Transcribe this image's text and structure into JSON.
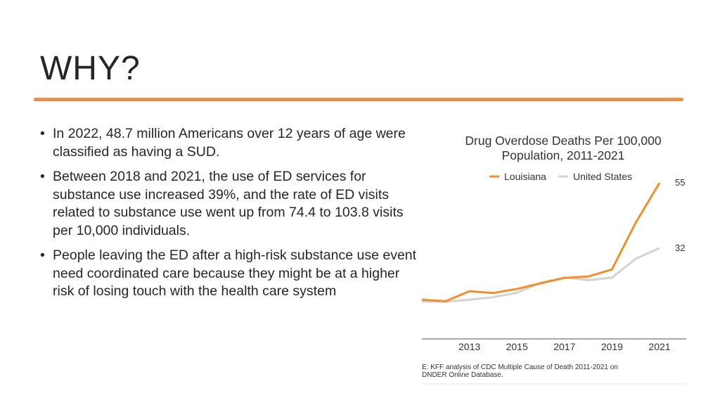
{
  "slide": {
    "title": "WHY?",
    "bullets": [
      "In 2022, 48.7 million Americans over 12 years of age were classified as having a SUD.",
      "Between 2018 and 2021, the use of ED services for substance use increased 39%, and the rate of ED visits related to substance use went up from 74.4 to 103.8 visits per 10,000 individuals.",
      "People leaving the ED after a high-risk substance use event need coordinated care because they might be at a higher risk of losing touch with the health care system"
    ],
    "bullet_glyph": "•",
    "accent_color": "#ef8d4f"
  },
  "chart_data": {
    "type": "line",
    "title_lines": [
      "Drug Overdose Deaths Per 100,000",
      "Population, 2011-2021"
    ],
    "x": [
      2011,
      2012,
      2013,
      2014,
      2015,
      2016,
      2017,
      2018,
      2019,
      2020,
      2021
    ],
    "tick_labels": [
      "2013",
      "2015",
      "2017",
      "2019",
      "2021"
    ],
    "series": [
      {
        "name": "Louisiana",
        "color": "#f28e2b",
        "values": [
          13.8,
          13.3,
          16.8,
          16.2,
          17.6,
          19.6,
          21.5,
          22.0,
          24.5,
          41.0,
          55.0
        ]
      },
      {
        "name": "United States",
        "color": "#d3d3d3",
        "values": [
          13.2,
          13.1,
          13.8,
          14.7,
          16.3,
          19.8,
          21.7,
          20.7,
          21.6,
          28.3,
          32.0
        ]
      }
    ],
    "end_labels": [
      "55",
      "32"
    ],
    "ylim": [
      0,
      60
    ],
    "source_lines": [
      "E: KFF analysis of CDC Multiple Cause of Death 2011-2021 on",
      "DNDER Online Database."
    ]
  }
}
